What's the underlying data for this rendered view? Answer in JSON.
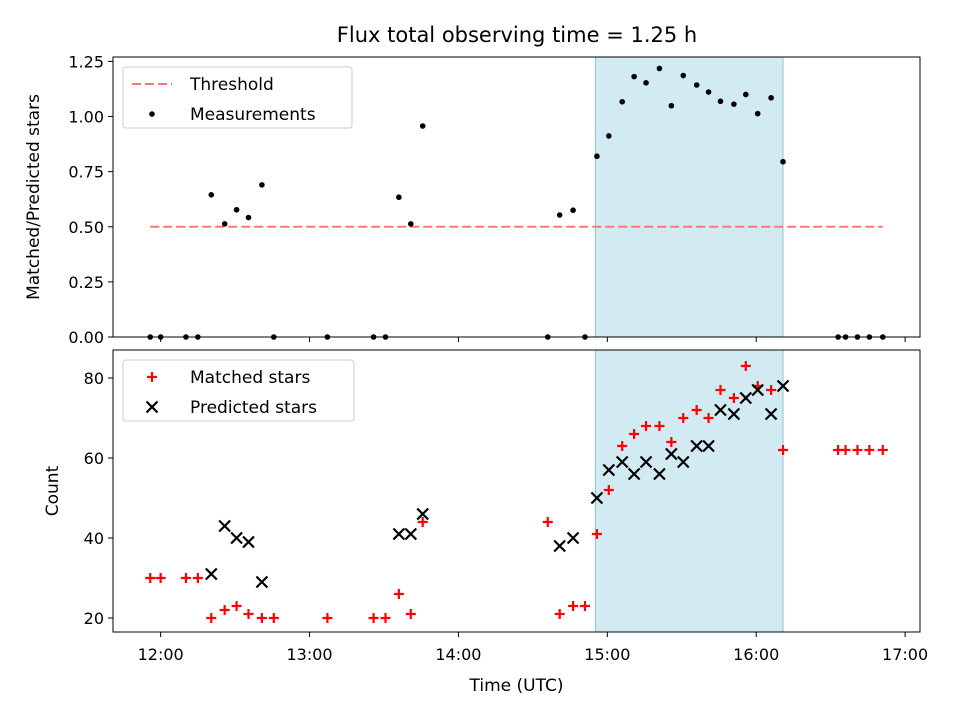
{
  "chart_data": [
    {
      "type": "scatter",
      "title": "Flux total observing time = 1.25 h",
      "ylabel": "Matched/Predicted stars",
      "xlabel": "",
      "x_units": "hours (UTC)",
      "xlim": [
        11.68,
        17.1
      ],
      "ylim": [
        0,
        1.27
      ],
      "yticks": [
        0,
        0.25,
        0.5,
        0.75,
        1.0,
        1.25
      ],
      "ytick_labels": [
        "0.00",
        "0.25",
        "0.50",
        "0.75",
        "1.00",
        "1.25"
      ],
      "xticks": [
        12,
        13,
        14,
        15,
        16,
        17
      ],
      "legend_position": "top-left",
      "shaded_interval": {
        "x": [
          14.92,
          16.18
        ],
        "color": "#add8e6"
      },
      "threshold": {
        "name": "Threshold",
        "y": 0.5,
        "x": [
          11.93,
          16.85
        ],
        "color": "#ff7777"
      },
      "series": [
        {
          "name": "Measurements",
          "color": "#000000",
          "marker": "dot",
          "x": [
            11.93,
            12.0,
            12.17,
            12.25,
            12.34,
            12.43,
            12.51,
            12.59,
            12.68,
            12.76,
            13.12,
            13.43,
            13.51,
            13.6,
            13.68,
            13.76,
            14.6,
            14.68,
            14.77,
            14.85,
            14.93,
            15.01,
            15.1,
            15.18,
            15.26,
            15.35,
            15.43,
            15.51,
            15.6,
            15.68,
            15.76,
            15.85,
            15.93,
            16.01,
            16.1,
            16.18,
            16.55,
            16.6,
            16.68,
            16.76,
            16.85
          ],
          "y": [
            0,
            0,
            0,
            0,
            0.645,
            0.513,
            0.577,
            0.542,
            0.69,
            0,
            0,
            0,
            0,
            0.634,
            0.513,
            0.957,
            0,
            0.553,
            0.575,
            0,
            0.82,
            0.912,
            1.067,
            1.181,
            1.153,
            1.218,
            1.049,
            1.186,
            1.143,
            1.111,
            1.069,
            1.056,
            1.1,
            1.013,
            1.085,
            0.795,
            0,
            0,
            0,
            0,
            0
          ]
        }
      ]
    },
    {
      "type": "scatter",
      "title": "",
      "xlabel": "Time (UTC)",
      "ylabel": "Count",
      "x_units": "hours (UTC)",
      "xlim": [
        11.68,
        17.1
      ],
      "ylim": [
        16.5,
        87
      ],
      "yticks": [
        20,
        40,
        60,
        80
      ],
      "xticks": [
        12,
        13,
        14,
        15,
        16,
        17
      ],
      "xtick_labels": [
        "12:00",
        "13:00",
        "14:00",
        "15:00",
        "16:00",
        "17:00"
      ],
      "legend_position": "top-left",
      "shaded_interval": {
        "x": [
          14.92,
          16.18
        ],
        "color": "#add8e6"
      },
      "series": [
        {
          "name": "Matched stars",
          "color": "#ff0000",
          "marker": "plus",
          "x": [
            11.93,
            12.0,
            12.17,
            12.25,
            12.34,
            12.43,
            12.51,
            12.59,
            12.68,
            12.76,
            13.12,
            13.43,
            13.51,
            13.6,
            13.68,
            13.76,
            14.6,
            14.68,
            14.77,
            14.85,
            14.93,
            15.01,
            15.1,
            15.18,
            15.26,
            15.35,
            15.43,
            15.51,
            15.6,
            15.68,
            15.76,
            15.85,
            15.93,
            16.01,
            16.1,
            16.18,
            16.55,
            16.6,
            16.68,
            16.76,
            16.85
          ],
          "y": [
            30,
            30,
            30,
            30,
            20,
            22,
            23,
            21,
            20,
            20,
            20,
            20,
            20,
            26,
            21,
            44,
            44,
            21,
            23,
            23,
            41,
            52,
            63,
            66,
            68,
            68,
            64,
            70,
            72,
            70,
            77,
            75,
            83,
            78,
            77,
            62,
            62,
            62,
            62,
            62,
            62
          ]
        },
        {
          "name": "Predicted stars",
          "color": "#000000",
          "marker": "x",
          "x": [
            12.34,
            12.43,
            12.51,
            12.59,
            12.68,
            13.6,
            13.68,
            13.76,
            14.68,
            14.77,
            14.93,
            15.01,
            15.1,
            15.18,
            15.26,
            15.35,
            15.43,
            15.51,
            15.6,
            15.68,
            15.76,
            15.85,
            15.93,
            16.01,
            16.1,
            16.18
          ],
          "y": [
            31,
            43,
            40,
            39,
            29,
            41,
            41,
            46,
            38,
            40,
            50,
            57,
            59,
            56,
            59,
            56,
            61,
            59,
            63,
            63,
            72,
            71,
            75,
            77,
            71,
            78
          ]
        }
      ]
    }
  ]
}
